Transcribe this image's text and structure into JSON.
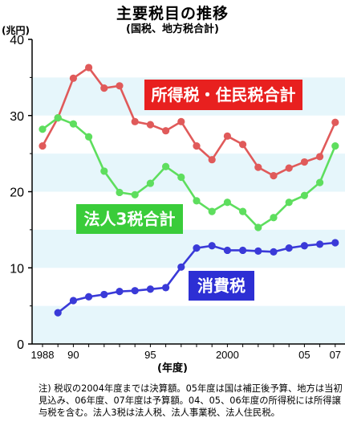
{
  "header": {
    "title": "主要税目の推移",
    "subtitle": "(国税、地方税合計)",
    "unit": "(兆円)"
  },
  "axes": {
    "xlabel": "(年度)",
    "x_tick_labels": [
      "1988",
      "90",
      "95",
      "2000",
      "05",
      "07"
    ],
    "y_tick_labels": [
      "0",
      "10",
      "20",
      "30",
      "40"
    ]
  },
  "note": "注) 税収の2004年度までは決算額。05年度は国は補正後予算、地方は当初見込み、06年度、07年度は予算額。04、05、06年度の所得税には所得譲与税を含む。法人3税は法人税、法人事業税、法人住民税。",
  "chart_data": {
    "type": "line",
    "title": "主要税目の推移",
    "subtitle": "(国税、地方税合計)",
    "xlabel": "(年度)",
    "ylabel": "(兆円)",
    "x": [
      1988,
      1989,
      1990,
      1991,
      1992,
      1993,
      1994,
      1995,
      1996,
      1997,
      1998,
      1999,
      2000,
      2001,
      2002,
      2003,
      2004,
      2005,
      2006,
      2007
    ],
    "xlim": [
      1987.5,
      2007.5
    ],
    "ylim": [
      0,
      40
    ],
    "y_ticks": [
      0,
      10,
      20,
      30,
      40
    ],
    "x_ticks": [
      1988,
      1990,
      1995,
      2000,
      2005,
      2007
    ],
    "grid": "horizontal bands",
    "series": [
      {
        "name": "所得税・住民税合計",
        "color": "#e05a5a",
        "label_bg": "#e8201f",
        "values": [
          26.0,
          29.7,
          34.9,
          36.3,
          33.6,
          33.9,
          29.2,
          28.8,
          28.0,
          29.2,
          26.0,
          24.2,
          27.3,
          26.2,
          23.2,
          22.1,
          23.1,
          23.9,
          24.6,
          29.1
        ]
      },
      {
        "name": "法人3税合計",
        "color": "#5ede5e",
        "label_bg": "#3acc3a",
        "values": [
          28.2,
          29.7,
          28.9,
          27.2,
          22.7,
          19.9,
          19.6,
          21.1,
          23.3,
          21.9,
          18.8,
          17.4,
          18.6,
          17.4,
          15.3,
          16.6,
          18.6,
          19.5,
          21.2,
          26.0
        ]
      },
      {
        "name": "消費税",
        "color": "#3a3ad8",
        "label_bg": "#2d2fd4",
        "values": [
          null,
          4.1,
          5.7,
          6.2,
          6.5,
          6.9,
          7.0,
          7.2,
          7.4,
          10.1,
          12.6,
          12.9,
          12.3,
          12.3,
          12.2,
          12.1,
          12.6,
          12.9,
          13.1,
          13.3
        ]
      }
    ]
  }
}
